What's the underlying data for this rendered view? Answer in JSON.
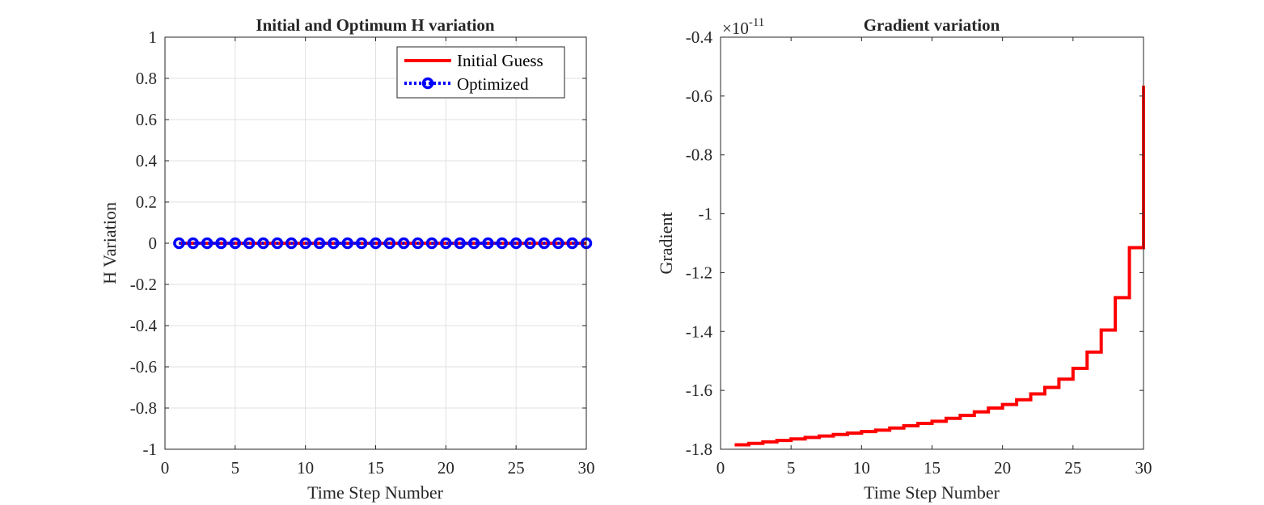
{
  "chart_data": [
    {
      "type": "line",
      "title": "Initial and Optimum H variation",
      "xlabel": "Time Step Number",
      "ylabel": "H Variation",
      "xlim": [
        0,
        30
      ],
      "ylim": [
        -1,
        1
      ],
      "xticks": [
        0,
        5,
        10,
        15,
        20,
        25,
        30
      ],
      "yticks": [
        -1,
        -0.8,
        -0.6,
        -0.4,
        -0.2,
        0,
        0.2,
        0.4,
        0.6,
        0.8,
        1
      ],
      "grid": true,
      "legend_position": "top-right",
      "x": [
        1,
        2,
        3,
        4,
        5,
        6,
        7,
        8,
        9,
        10,
        11,
        12,
        13,
        14,
        15,
        16,
        17,
        18,
        19,
        20,
        21,
        22,
        23,
        24,
        25,
        26,
        27,
        28,
        29,
        30
      ],
      "series": [
        {
          "name": "Initial Guess",
          "color": "#ff0000",
          "style": "solid",
          "values": [
            0,
            0,
            0,
            0,
            0,
            0,
            0,
            0,
            0,
            0,
            0,
            0,
            0,
            0,
            0,
            0,
            0,
            0,
            0,
            0,
            0,
            0,
            0,
            0,
            0,
            0,
            0,
            0,
            0,
            0
          ]
        },
        {
          "name": "Optimized",
          "color": "#0000ff",
          "style": "dotted-circle",
          "values": [
            0,
            0,
            0,
            0,
            0,
            0,
            0,
            0,
            0,
            0,
            0,
            0,
            0,
            0,
            0,
            0,
            0,
            0,
            0,
            0,
            0,
            0,
            0,
            0,
            0,
            0,
            0,
            0,
            0,
            0
          ]
        }
      ]
    },
    {
      "type": "line",
      "title": "Gradient variation",
      "xlabel": "Time Step Number",
      "ylabel": "Gradient",
      "xlim": [
        0,
        30
      ],
      "ylim": [
        -1.8,
        -0.4
      ],
      "xticks": [
        0,
        5,
        10,
        15,
        20,
        25,
        30
      ],
      "yticks": [
        -1.8,
        -1.6,
        -1.4,
        -1.2,
        -1,
        -0.8,
        -0.6,
        -0.4
      ],
      "exponent_base": "×10",
      "exponent_power": "-11",
      "grid": false,
      "step": true,
      "x": [
        1,
        2,
        3,
        4,
        5,
        6,
        7,
        8,
        9,
        10,
        11,
        12,
        13,
        14,
        15,
        16,
        17,
        18,
        19,
        20,
        21,
        22,
        23,
        24,
        25,
        26,
        27,
        28,
        29,
        30
      ],
      "series": [
        {
          "color": "#ff0000",
          "values": [
            -1.785,
            -1.78,
            -1.775,
            -1.77,
            -1.765,
            -1.76,
            -1.755,
            -1.75,
            -1.745,
            -1.74,
            -1.735,
            -1.728,
            -1.72,
            -1.712,
            -1.705,
            -1.695,
            -1.685,
            -1.673,
            -1.66,
            -1.648,
            -1.632,
            -1.612,
            -1.59,
            -1.562,
            -1.525,
            -1.47,
            -1.395,
            -1.285,
            -1.115,
            -0.565
          ]
        }
      ]
    }
  ]
}
